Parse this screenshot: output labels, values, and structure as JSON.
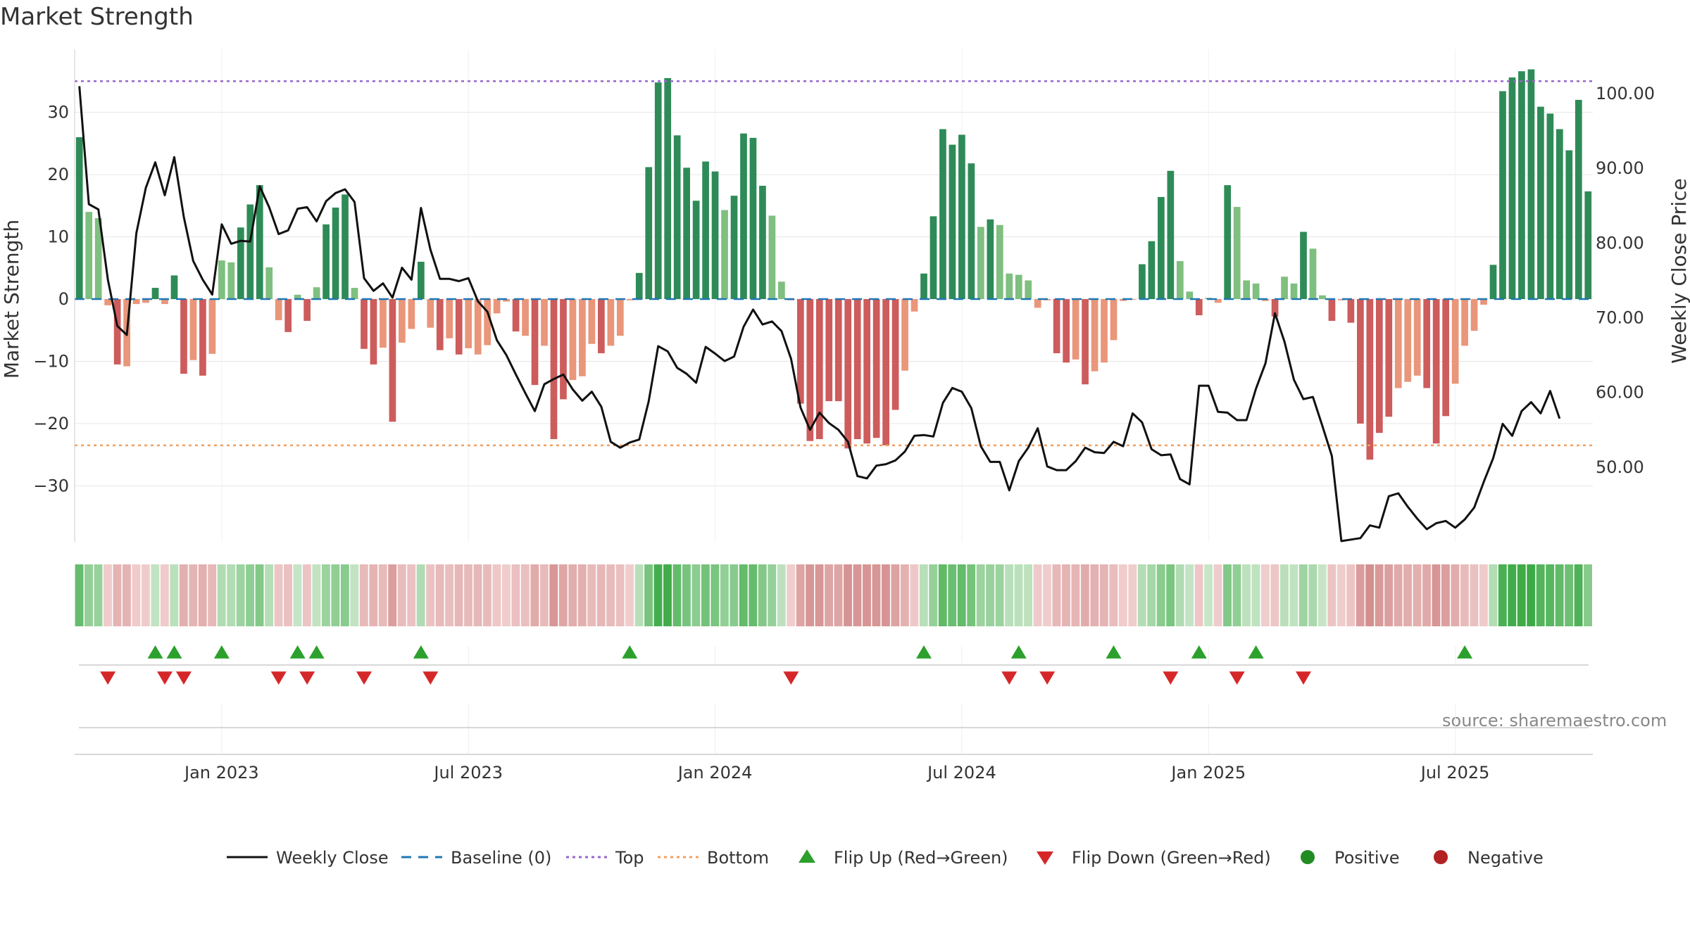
{
  "title": "Market Strength",
  "source": "source: sharemaestro.com",
  "colors": {
    "green_dark": "#2e8b57",
    "green_light": "#7fbf7f",
    "red_dark": "#cd5c5c",
    "red_light": "#e9967a",
    "top_line": "#9966cc",
    "bottom_line": "#f0a060",
    "baseline": "#1f77b4",
    "close": "#111111",
    "flip_up": "#2ca02c",
    "flip_down": "#d62728",
    "positive": "#228b22",
    "negative": "#b22222"
  },
  "chart_data": {
    "type": "bar",
    "title": "Market Strength",
    "ylabel": "Market Strength",
    "y2label": "Weekly Close Price",
    "ylim": [
      -39,
      39
    ],
    "y2lim": [
      40,
      105
    ],
    "y_ticks": [
      "30",
      "20",
      "10",
      "0",
      "−10",
      "−20",
      "−30"
    ],
    "y2_ticks": [
      "100.00",
      "90.00",
      "80.00",
      "70.00",
      "60.00",
      "50.00"
    ],
    "x_ticks": [
      "Jan 2023",
      "Jul 2023",
      "Jan 2024",
      "Jul 2024",
      "Jan 2025",
      "Jul 2025"
    ],
    "x_tick_weeks": [
      15,
      41,
      67,
      93,
      119,
      145
    ],
    "top_level": 35,
    "bottom_level": -23.5,
    "series": [
      {
        "name": "Market Strength",
        "values": [
          26,
          14,
          13,
          -1,
          -10.5,
          -10.8,
          -0.8,
          -0.6,
          1.8,
          -0.8,
          3.8,
          -12,
          -9.8,
          -12.3,
          -8.8,
          6.2,
          5.9,
          11.5,
          15.2,
          18.3,
          5.1,
          -3.4,
          -5.3,
          0.7,
          -3.5,
          1.9,
          12,
          14.7,
          16.8,
          1.8,
          -8,
          -10.5,
          -7.8,
          -19.7,
          -7,
          -4.8,
          6,
          -4.6,
          -8.2,
          -6.3,
          -8.9,
          -7.9,
          -8.9,
          -7.4,
          -2.3,
          -0.4,
          -5.2,
          -5.9,
          -13.8,
          -7.5,
          -22.5,
          -16.1,
          -13,
          -12.4,
          -7.2,
          -8.7,
          -7.5,
          -5.9,
          -0.2,
          4.2,
          21.2,
          34.8,
          35.5,
          26.3,
          21.1,
          15.8,
          22.1,
          20.5,
          14.3,
          16.6,
          26.6,
          25.9,
          18.2,
          13.4,
          2.8,
          -0.2,
          -16.8,
          -22.8,
          -22.5,
          -16.4,
          -16.4,
          -24,
          -22.5,
          -23.2,
          -22.3,
          -23.5,
          -17.8,
          -11.5,
          -2,
          4.1,
          13.3,
          27.3,
          24.8,
          26.4,
          21.8,
          11.6,
          12.8,
          11.9,
          4.1,
          3.9,
          3,
          -1.4,
          -0.2,
          -8.7,
          -10.2,
          -9.7,
          -13.7,
          -11.6,
          -10.2,
          -6.6,
          -0.3,
          -0.1,
          5.6,
          9.3,
          16.4,
          20.6,
          6.1,
          1.2,
          -2.6,
          0.2,
          -0.6,
          18.3,
          14.8,
          3,
          2.5,
          -0.3,
          -2.8,
          3.6,
          2.5,
          10.8,
          8.1,
          0.6,
          -3.5,
          -0.2,
          -3.8,
          -20,
          -25.8,
          -21.5,
          -18.9,
          -14.3,
          -13.3,
          -12.3,
          -14.3,
          -23.2,
          -18.8,
          -13.6,
          -7.5,
          -5.1,
          -0.9,
          5.5,
          33.4,
          35.6,
          36.6,
          36.9,
          30.9,
          29.8,
          27.3,
          23.9,
          32,
          17.3
        ]
      },
      {
        "name": "Weekly Close",
        "values": [
          101,
          85.2,
          84.5,
          75.1,
          68.9,
          67.7,
          81.3,
          87.4,
          90.8,
          86.4,
          91.5,
          83.5,
          77.6,
          75.1,
          73.1,
          82.5,
          79.9,
          80.3,
          80.2,
          87.6,
          84.8,
          81.2,
          81.7,
          84.6,
          84.8,
          82.9,
          85.6,
          86.7,
          87.2,
          85.5,
          75.3,
          73.6,
          74.6,
          72.7,
          76.7,
          75.1,
          84.7,
          79.1,
          75.2,
          75.2,
          74.9,
          75.3,
          72.2,
          70.8,
          67,
          65,
          62.4,
          59.9,
          57.5,
          61.1,
          61.8,
          62.4,
          60.4,
          58.9,
          60.1,
          58.1,
          53.4,
          52.6,
          53.3,
          53.7,
          58.8,
          66.2,
          65.5,
          63.3,
          62.5,
          61.3,
          66.1,
          65.2,
          64.2,
          64.8,
          68.8,
          71.1,
          69.1,
          69.5,
          68.2,
          64.5,
          58,
          55,
          57.3,
          55.9,
          55,
          53.4,
          48.8,
          48.5,
          50.2,
          50.4,
          50.9,
          52.1,
          54.2,
          54.3,
          54.1,
          58.6,
          60.6,
          60.1,
          57.9,
          52.8,
          50.7,
          50.7,
          46.9,
          50.8,
          52.6,
          55.2,
          50.1,
          49.6,
          49.6,
          50.8,
          52.6,
          52,
          51.9,
          53.4,
          52.8,
          57.2,
          56,
          52.4,
          51.6,
          51.7,
          48.4,
          47.7,
          60.9,
          60.9,
          57.4,
          57.3,
          56.3,
          56.3,
          60.5,
          63.9,
          70.6,
          66.8,
          61.7,
          59.1,
          59.4,
          55.5,
          51.5,
          40.1,
          40.3,
          40.5,
          42.2,
          41.9,
          46.1,
          46.5,
          44.7,
          43.1,
          41.7,
          42.5,
          42.8,
          41.9,
          43,
          44.6,
          48,
          51.2,
          55.8,
          54.2,
          57.5,
          58.7,
          57.2,
          60.2,
          56.5
        ]
      }
    ],
    "state_strip": "per-week shading of strength state (green = positive, red = negative)",
    "flip_up_weeks": [
      8,
      10,
      15,
      23,
      25,
      36,
      58,
      89,
      99,
      109,
      118,
      124,
      146
    ],
    "flip_down_weeks": [
      3,
      9,
      11,
      21,
      24,
      30,
      37,
      75,
      98,
      102,
      115,
      122,
      129
    ],
    "legend": [
      {
        "label": "Weekly Close",
        "kind": "line-solid",
        "color_key": "close"
      },
      {
        "label": "Baseline (0)",
        "kind": "line-dash",
        "color_key": "baseline"
      },
      {
        "label": "Top",
        "kind": "line-dot",
        "color_key": "top_line"
      },
      {
        "label": "Bottom",
        "kind": "line-dot",
        "color_key": "bottom_line"
      },
      {
        "label": "Flip Up (Red→Green)",
        "kind": "tri-up",
        "color_key": "flip_up"
      },
      {
        "label": "Flip Down (Green→Red)",
        "kind": "tri-down",
        "color_key": "flip_down"
      },
      {
        "label": "Positive",
        "kind": "dot",
        "color_key": "positive"
      },
      {
        "label": "Negative",
        "kind": "dot",
        "color_key": "negative"
      }
    ],
    "legend_position": "bottom"
  }
}
